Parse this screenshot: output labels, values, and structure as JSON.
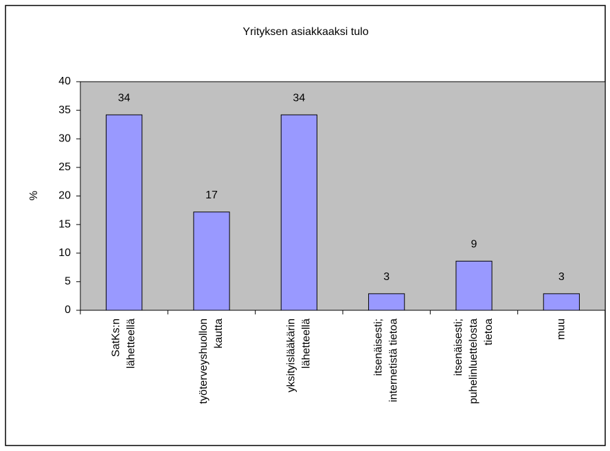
{
  "chart_data": {
    "type": "bar",
    "title": "Yrityksen asiakkaaksi tulo",
    "ylabel": "%",
    "categories": [
      "SatKs:n\nlähetteellä",
      "työterveyshuollon\nkautta",
      "yksityislääkärin\nlähetteellä",
      "itsenäisesti;\ninternetistä tietoa",
      "itsenäisesti;\npuhelinluettelosta\ntietoa",
      "muu"
    ],
    "values": [
      34.2,
      17.2,
      34.2,
      2.9,
      8.6,
      2.9
    ],
    "value_labels": [
      "34",
      "17",
      "34",
      "3",
      "9",
      "3"
    ],
    "color": "#9999ff",
    "plot_background": "#c0c0c0",
    "ylim": [
      0,
      40
    ],
    "yticks": [
      0,
      5,
      10,
      15,
      20,
      25,
      30,
      35,
      40
    ],
    "grid": false
  }
}
